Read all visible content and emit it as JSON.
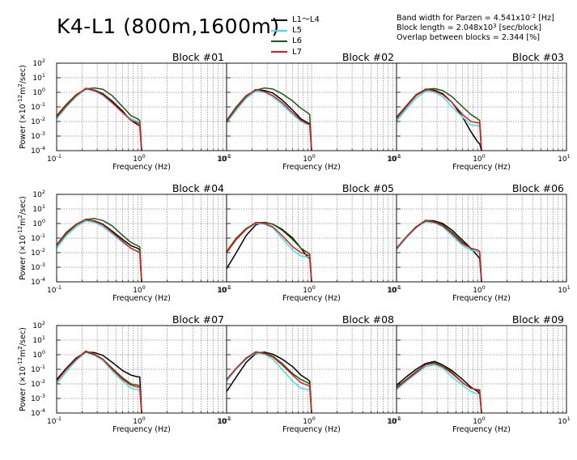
{
  "figure": {
    "title": "K4-L1 (800m,1600m)",
    "params": [
      {
        "text": "Band width for Parzen = 4.541x10",
        "sup": "-2",
        "after": " [Hz]"
      },
      {
        "text": "Block length = 2.048x10",
        "sup": "3",
        "after": " [sec/block]"
      },
      {
        "text": "Overlap between blocks = 2.344 [%]",
        "sup": "",
        "after": ""
      }
    ]
  },
  "legend": [
    {
      "label": "L1〜L4",
      "color": "#000000"
    },
    {
      "label": "L5",
      "color": "#33e6f0"
    },
    {
      "label": "L6",
      "color": "#1f5a10"
    },
    {
      "label": "L7",
      "color": "#e01b1b"
    }
  ],
  "axis_text": {
    "xlabel": "Frequency (Hz)",
    "ylabel_prefix": "Power (×10",
    "ylabel_sup1": "-12",
    "ylabel_mid": "m",
    "ylabel_sup2": "2",
    "ylabel_suffix": "/sec)"
  },
  "chart_data": [
    {
      "type": "line",
      "title": "Block #01",
      "xscale": "log",
      "yscale": "log",
      "xlim": [
        0.1,
        10
      ],
      "ylim": [
        0.0001,
        100
      ],
      "grid": true,
      "x": [
        0.1,
        0.13,
        0.17,
        0.22,
        0.28,
        0.35,
        0.45,
        0.6,
        0.75,
        0.9,
        0.95,
        1.0
      ],
      "series": [
        {
          "name": "L1〜L4",
          "values": [
            0.02,
            0.12,
            0.6,
            1.8,
            1.4,
            0.8,
            0.25,
            0.05,
            0.012,
            0.006,
            0.005,
            0.0001
          ]
        },
        {
          "name": "L5",
          "values": [
            0.015,
            0.1,
            0.5,
            1.6,
            1.2,
            0.6,
            0.18,
            0.04,
            0.015,
            0.01,
            0.01,
            0.0001
          ]
        },
        {
          "name": "L6",
          "values": [
            0.025,
            0.15,
            0.7,
            1.7,
            2.0,
            1.6,
            0.6,
            0.1,
            0.025,
            0.015,
            0.012,
            0.0001
          ]
        },
        {
          "name": "L7",
          "values": [
            0.02,
            0.12,
            0.6,
            1.9,
            1.3,
            0.7,
            0.2,
            0.04,
            0.012,
            0.008,
            0.007,
            0.0001
          ]
        }
      ]
    },
    {
      "type": "line",
      "title": "Block #02",
      "xscale": "log",
      "yscale": "log",
      "xlim": [
        0.1,
        10
      ],
      "ylim": [
        0.0001,
        100
      ],
      "grid": true,
      "x": [
        0.1,
        0.13,
        0.17,
        0.22,
        0.28,
        0.35,
        0.45,
        0.6,
        0.75,
        0.9,
        0.95,
        1.0
      ],
      "series": [
        {
          "name": "L1〜L4",
          "values": [
            0.01,
            0.08,
            0.5,
            1.5,
            1.3,
            0.9,
            0.3,
            0.06,
            0.015,
            0.008,
            0.007,
            0.0001
          ]
        },
        {
          "name": "L5",
          "values": [
            0.008,
            0.06,
            0.4,
            1.2,
            1.0,
            0.5,
            0.15,
            0.03,
            0.01,
            0.006,
            0.006,
            0.0001
          ]
        },
        {
          "name": "L6",
          "values": [
            0.012,
            0.1,
            0.6,
            1.4,
            2.0,
            1.7,
            0.8,
            0.25,
            0.08,
            0.04,
            0.03,
            0.0001
          ]
        },
        {
          "name": "L7",
          "values": [
            0.01,
            0.08,
            0.5,
            1.6,
            1.1,
            0.6,
            0.2,
            0.04,
            0.012,
            0.007,
            0.006,
            0.0001
          ]
        }
      ]
    },
    {
      "type": "line",
      "title": "Block #03",
      "xscale": "log",
      "yscale": "log",
      "xlim": [
        0.1,
        10
      ],
      "ylim": [
        0.0001,
        100
      ],
      "grid": true,
      "x": [
        0.1,
        0.13,
        0.17,
        0.22,
        0.28,
        0.35,
        0.45,
        0.6,
        0.75,
        0.9,
        0.95,
        1.0
      ],
      "series": [
        {
          "name": "L1〜L4",
          "values": [
            0.015,
            0.1,
            0.6,
            1.5,
            1.4,
            0.8,
            0.2,
            0.02,
            0.002,
            0.0004,
            0.0003,
            0.0001
          ]
        },
        {
          "name": "L5",
          "values": [
            0.01,
            0.07,
            0.4,
            1.2,
            1.0,
            0.5,
            0.1,
            0.02,
            0.006,
            0.005,
            0.005,
            0.0001
          ]
        },
        {
          "name": "L6",
          "values": [
            0.02,
            0.12,
            0.7,
            1.6,
            1.8,
            1.3,
            0.5,
            0.1,
            0.03,
            0.015,
            0.012,
            0.0001
          ]
        },
        {
          "name": "L7",
          "values": [
            0.015,
            0.1,
            0.6,
            1.7,
            1.2,
            0.7,
            0.2,
            0.03,
            0.01,
            0.008,
            0.008,
            0.0001
          ]
        }
      ]
    },
    {
      "type": "line",
      "title": "Block #04",
      "xscale": "log",
      "yscale": "log",
      "xlim": [
        0.1,
        10
      ],
      "ylim": [
        0.0001,
        100
      ],
      "grid": true,
      "x": [
        0.1,
        0.13,
        0.17,
        0.22,
        0.28,
        0.35,
        0.45,
        0.6,
        0.75,
        0.9,
        0.95,
        1.0
      ],
      "series": [
        {
          "name": "L1〜L4",
          "values": [
            0.03,
            0.2,
            0.8,
            1.8,
            1.5,
            0.9,
            0.3,
            0.08,
            0.03,
            0.02,
            0.015,
            0.0001
          ]
        },
        {
          "name": "L5",
          "values": [
            0.02,
            0.15,
            0.6,
            1.5,
            1.2,
            0.6,
            0.2,
            0.05,
            0.02,
            0.012,
            0.01,
            0.0001
          ]
        },
        {
          "name": "L6",
          "values": [
            0.035,
            0.25,
            0.9,
            1.9,
            2.2,
            1.6,
            0.7,
            0.15,
            0.05,
            0.03,
            0.025,
            0.0001
          ]
        },
        {
          "name": "L7",
          "values": [
            0.03,
            0.2,
            0.8,
            2.0,
            1.4,
            0.8,
            0.25,
            0.06,
            0.02,
            0.012,
            0.01,
            0.0001
          ]
        }
      ]
    },
    {
      "type": "line",
      "title": "Block #05",
      "xscale": "log",
      "yscale": "log",
      "xlim": [
        0.1,
        10
      ],
      "ylim": [
        0.0001,
        100
      ],
      "grid": true,
      "x": [
        0.1,
        0.13,
        0.17,
        0.22,
        0.28,
        0.35,
        0.45,
        0.6,
        0.75,
        0.9,
        0.95,
        1.0
      ],
      "series": [
        {
          "name": "L1〜L4",
          "values": [
            0.0008,
            0.01,
            0.15,
            0.8,
            1.2,
            0.9,
            0.4,
            0.1,
            0.02,
            0.005,
            0.004,
            0.0001
          ]
        },
        {
          "name": "L5",
          "values": [
            0.01,
            0.08,
            0.4,
            1.0,
            0.9,
            0.5,
            0.1,
            0.015,
            0.006,
            0.005,
            0.005,
            0.0001
          ]
        },
        {
          "name": "L6",
          "values": [
            0.012,
            0.1,
            0.45,
            1.1,
            1.2,
            0.9,
            0.35,
            0.08,
            0.02,
            0.01,
            0.008,
            0.0001
          ]
        },
        {
          "name": "L7",
          "values": [
            0.01,
            0.08,
            0.4,
            1.2,
            1.0,
            0.6,
            0.15,
            0.025,
            0.01,
            0.007,
            0.006,
            0.0001
          ]
        }
      ]
    },
    {
      "type": "line",
      "title": "Block #06",
      "xscale": "log",
      "yscale": "log",
      "xlim": [
        0.1,
        10
      ],
      "ylim": [
        0.0001,
        100
      ],
      "grid": true,
      "x": [
        0.1,
        0.13,
        0.17,
        0.22,
        0.28,
        0.35,
        0.45,
        0.6,
        0.75,
        0.9,
        0.95,
        1.0
      ],
      "series": [
        {
          "name": "L1〜L4",
          "values": [
            0.02,
            0.12,
            0.6,
            1.6,
            1.5,
            1.0,
            0.35,
            0.07,
            0.02,
            0.006,
            0.004,
            0.0001
          ]
        },
        {
          "name": "L5",
          "values": [
            0.015,
            0.1,
            0.5,
            1.3,
            1.1,
            0.6,
            0.15,
            0.03,
            0.015,
            0.012,
            0.01,
            0.0001
          ]
        },
        {
          "name": "L6",
          "values": [
            0.02,
            0.12,
            0.6,
            1.5,
            1.3,
            0.8,
            0.25,
            0.05,
            0.02,
            0.015,
            0.012,
            0.0001
          ]
        },
        {
          "name": "L7",
          "values": [
            0.02,
            0.12,
            0.55,
            1.7,
            1.2,
            0.7,
            0.2,
            0.04,
            0.02,
            0.015,
            0.012,
            0.0001
          ]
        }
      ]
    },
    {
      "type": "line",
      "title": "Block #07",
      "xscale": "log",
      "yscale": "log",
      "xlim": [
        0.1,
        10
      ],
      "ylim": [
        0.0001,
        100
      ],
      "grid": true,
      "x": [
        0.1,
        0.13,
        0.17,
        0.22,
        0.28,
        0.35,
        0.45,
        0.6,
        0.75,
        0.9,
        0.95,
        1.0
      ],
      "series": [
        {
          "name": "L1〜L4",
          "values": [
            0.02,
            0.12,
            0.6,
            1.5,
            1.4,
            0.9,
            0.3,
            0.08,
            0.04,
            0.03,
            0.03,
            0.0001
          ]
        },
        {
          "name": "L5",
          "values": [
            0.01,
            0.07,
            0.4,
            1.5,
            0.9,
            0.4,
            0.08,
            0.015,
            0.005,
            0.004,
            0.004,
            0.0001
          ]
        },
        {
          "name": "L6",
          "values": [
            0.015,
            0.1,
            0.5,
            1.6,
            1.0,
            0.5,
            0.12,
            0.025,
            0.01,
            0.008,
            0.007,
            0.0001
          ]
        },
        {
          "name": "L7",
          "values": [
            0.015,
            0.1,
            0.5,
            1.8,
            1.1,
            0.5,
            0.1,
            0.02,
            0.008,
            0.006,
            0.006,
            0.0001
          ]
        }
      ]
    },
    {
      "type": "line",
      "title": "Block #08",
      "xscale": "log",
      "yscale": "log",
      "xlim": [
        0.1,
        10
      ],
      "ylim": [
        0.0001,
        100
      ],
      "grid": true,
      "x": [
        0.1,
        0.13,
        0.17,
        0.22,
        0.28,
        0.35,
        0.45,
        0.6,
        0.75,
        0.9,
        0.95,
        1.0
      ],
      "series": [
        {
          "name": "L1〜L4",
          "values": [
            0.003,
            0.03,
            0.3,
            1.2,
            1.5,
            1.1,
            0.5,
            0.15,
            0.04,
            0.02,
            0.015,
            0.0001
          ]
        },
        {
          "name": "L5",
          "values": [
            0.015,
            0.1,
            0.5,
            1.3,
            1.1,
            0.5,
            0.1,
            0.015,
            0.005,
            0.004,
            0.004,
            0.0001
          ]
        },
        {
          "name": "L6",
          "values": [
            0.02,
            0.12,
            0.6,
            1.5,
            1.3,
            0.8,
            0.25,
            0.05,
            0.02,
            0.012,
            0.01,
            0.0001
          ]
        },
        {
          "name": "L7",
          "values": [
            0.02,
            0.12,
            0.55,
            1.6,
            1.2,
            0.7,
            0.2,
            0.04,
            0.012,
            0.008,
            0.007,
            0.0001
          ]
        }
      ]
    },
    {
      "type": "line",
      "title": "Block #09",
      "xscale": "log",
      "yscale": "log",
      "xlim": [
        0.1,
        10
      ],
      "ylim": [
        0.0001,
        100
      ],
      "grid": true,
      "x": [
        0.1,
        0.13,
        0.17,
        0.22,
        0.28,
        0.35,
        0.45,
        0.6,
        0.75,
        0.9,
        0.95,
        1.0
      ],
      "series": [
        {
          "name": "L1〜L4",
          "values": [
            0.008,
            0.03,
            0.1,
            0.25,
            0.35,
            0.2,
            0.08,
            0.02,
            0.006,
            0.003,
            0.002,
            0.0001
          ]
        },
        {
          "name": "L5",
          "values": [
            0.004,
            0.015,
            0.05,
            0.15,
            0.2,
            0.12,
            0.03,
            0.008,
            0.003,
            0.002,
            0.002,
            0.0001
          ]
        },
        {
          "name": "L6",
          "values": [
            0.006,
            0.02,
            0.07,
            0.2,
            0.3,
            0.18,
            0.06,
            0.012,
            0.005,
            0.004,
            0.004,
            0.0001
          ]
        },
        {
          "name": "L7",
          "values": [
            0.005,
            0.018,
            0.06,
            0.2,
            0.25,
            0.15,
            0.05,
            0.012,
            0.005,
            0.004,
            0.003,
            0.0001
          ]
        }
      ]
    }
  ]
}
